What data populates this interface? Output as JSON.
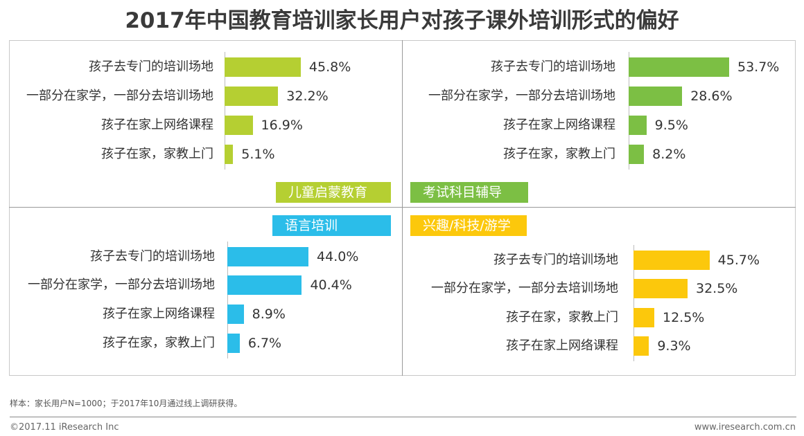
{
  "title": "2017年中国教育培训家长用户对孩子课外培训形式的偏好",
  "chart_data": [
    {
      "type": "bar",
      "orientation": "horizontal",
      "title": "儿童启蒙教育",
      "color": "#b5cf32",
      "unit": "%",
      "categories": [
        "孩子去专门的培训场地",
        "一部分在家学，一部分去培训场地",
        "孩子在家上网络课程",
        "孩子在家，家教上门"
      ],
      "values": [
        45.8,
        32.2,
        16.9,
        5.1
      ],
      "labels": [
        "45.8%",
        "32.2%",
        "16.9%",
        "5.1%"
      ]
    },
    {
      "type": "bar",
      "orientation": "horizontal",
      "title": "考试科目辅导",
      "color": "#7cbf44",
      "unit": "%",
      "categories": [
        "孩子去专门的培训场地",
        "一部分在家学，一部分去培训场地",
        "孩子在家上网络课程",
        "孩子在家，家教上门"
      ],
      "values": [
        53.7,
        28.6,
        9.5,
        8.2
      ],
      "labels": [
        "53.7%",
        "28.6%",
        "9.5%",
        "8.2%"
      ]
    },
    {
      "type": "bar",
      "orientation": "horizontal",
      "title": "语言培训",
      "color": "#2bbde9",
      "unit": "%",
      "categories": [
        "孩子去专门的培训场地",
        "一部分在家学，一部分去培训场地",
        "孩子在家上网络课程",
        "孩子在家，家教上门"
      ],
      "values": [
        44.0,
        40.4,
        8.9,
        6.7
      ],
      "labels": [
        "44.0%",
        "40.4%",
        "8.9%",
        "6.7%"
      ]
    },
    {
      "type": "bar",
      "orientation": "horizontal",
      "title": "兴趣/科技/游学",
      "color": "#fcc80c",
      "unit": "%",
      "categories": [
        "孩子去专门的培训场地",
        "一部分在家学，一部分去培训场地",
        "孩子在家，家教上门",
        "孩子在家上网络课程"
      ],
      "values": [
        45.7,
        32.5,
        12.5,
        9.3
      ],
      "labels": [
        "45.7%",
        "32.5%",
        "12.5%",
        "9.3%"
      ]
    }
  ],
  "footer": {
    "note": "样本：家长用户N=1000；于2017年10月通过线上调研获得。",
    "copyright": "©2017.11 iResearch Inc",
    "website": "www.iresearch.com.cn"
  }
}
